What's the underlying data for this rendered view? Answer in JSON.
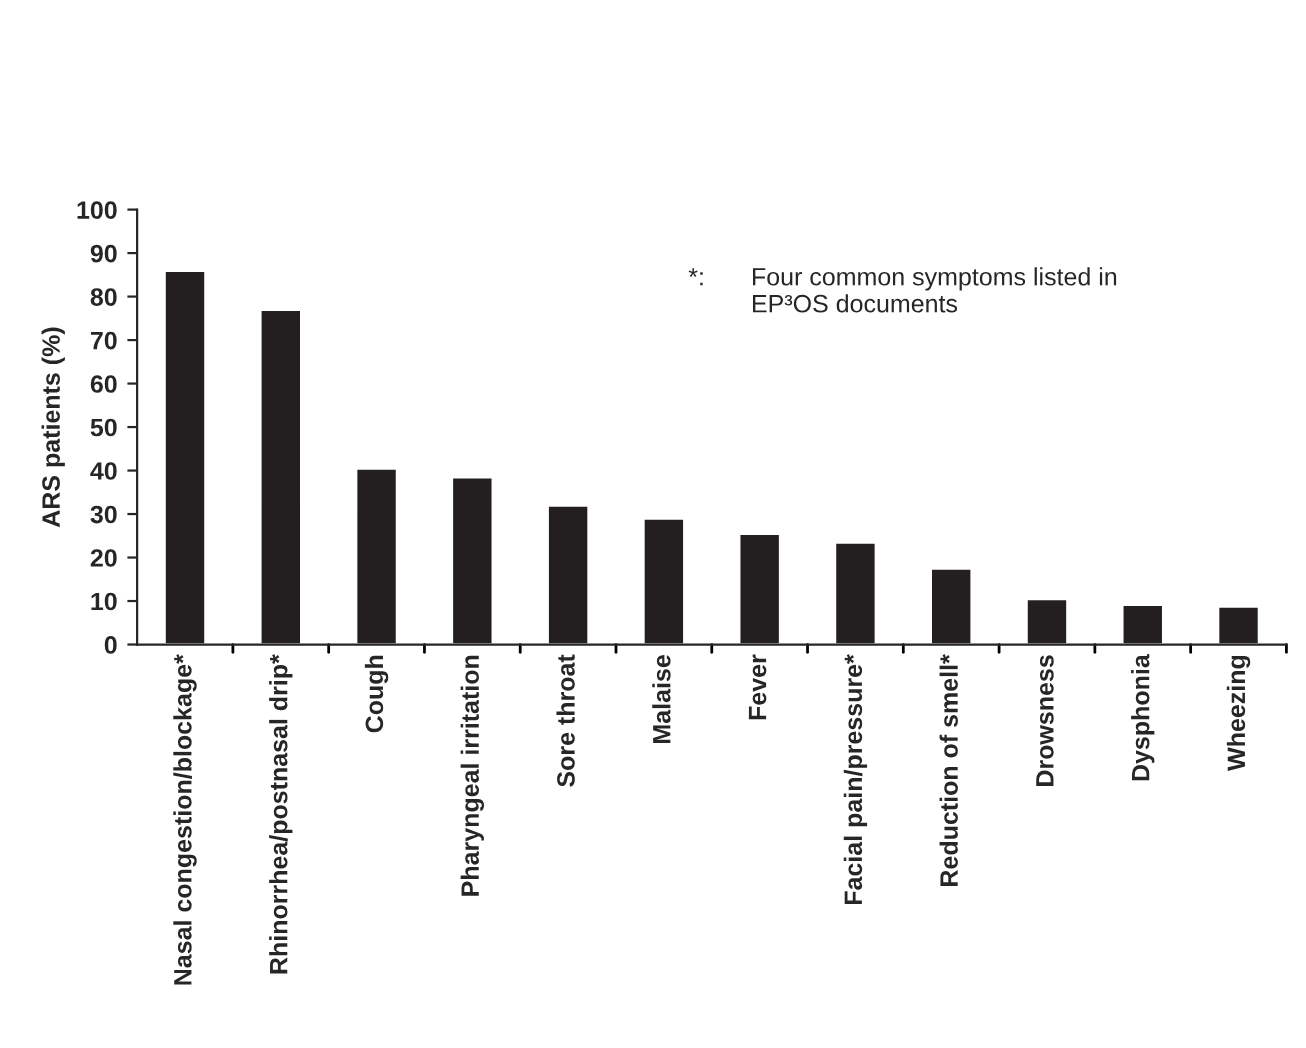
{
  "chart_data": {
    "type": "bar",
    "ylabel": "ARS patients (%)",
    "categories": [
      "Nasal congestion/blockage*",
      "Rhinorrhea/postnasal drip*",
      "Cough",
      "Pharyngeal irritation",
      "Sore throat",
      "Malaise",
      "Fever",
      "Facial pain/pressure*",
      "Reduction of smell*",
      "Drowsness",
      "Dysphonia",
      "Wheezing"
    ],
    "values": [
      86,
      77,
      40.5,
      38.5,
      32,
      29,
      25.5,
      23.5,
      17.5,
      10.5,
      9.2,
      8.8
    ],
    "color": "#231f20",
    "ylim": [
      0,
      100
    ],
    "yticks": [
      0,
      10,
      20,
      30,
      40,
      50,
      60,
      70,
      80,
      90,
      100
    ],
    "grid": false,
    "annotations": [
      "*:",
      "Four common symptoms listed in\nEP³OS documents"
    ]
  }
}
